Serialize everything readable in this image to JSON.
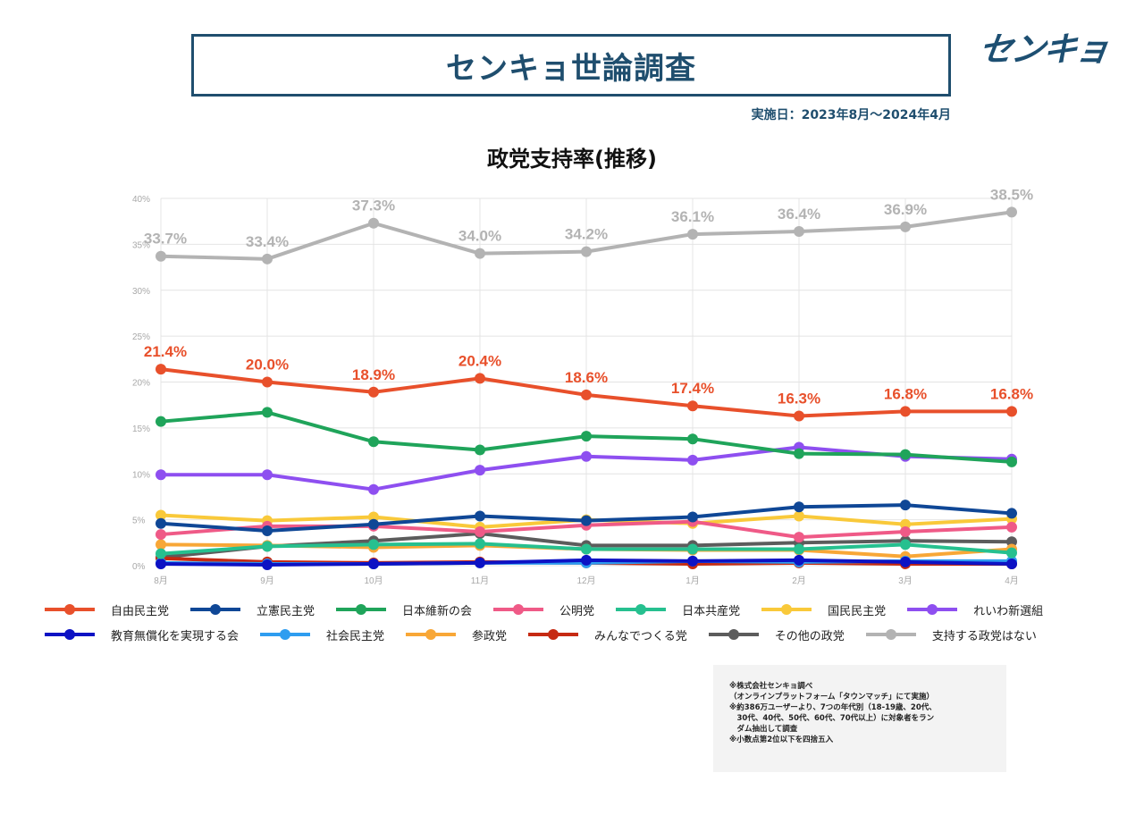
{
  "header": {
    "title": "センキョ世論調査",
    "logo": "センキョ",
    "date_range": "実施日：2023年8月〜2024年4月"
  },
  "chart_data": {
    "type": "line",
    "title": "政党支持率(推移)",
    "xlabel": "",
    "ylabel": "",
    "categories": [
      "8月",
      "9月",
      "10月",
      "11月",
      "12月",
      "1月",
      "2月",
      "3月",
      "4月"
    ],
    "ylim": [
      0,
      40
    ],
    "yticks": [
      "0%",
      "5%",
      "10%",
      "15%",
      "20%",
      "25%",
      "30%",
      "35%",
      "40%"
    ],
    "grid": true,
    "legend_position": "bottom",
    "series": [
      {
        "name": "自由民主党",
        "color": "#e8502b",
        "values": [
          21.4,
          20.0,
          18.9,
          20.4,
          18.6,
          17.4,
          16.3,
          16.8,
          16.8
        ],
        "labels": [
          "21.4%",
          "20.0%",
          "18.9%",
          "20.4%",
          "18.6%",
          "17.4%",
          "16.3%",
          "16.8%",
          "16.8%"
        ]
      },
      {
        "name": "立憲民主党",
        "color": "#0f4796",
        "values": [
          4.6,
          3.8,
          4.5,
          5.4,
          4.9,
          5.3,
          6.4,
          6.6,
          5.7
        ]
      },
      {
        "name": "日本維新の会",
        "color": "#1fa45a",
        "values": [
          15.7,
          16.7,
          13.5,
          12.6,
          14.1,
          13.8,
          12.2,
          12.1,
          11.3
        ]
      },
      {
        "name": "公明党",
        "color": "#ef5a87",
        "values": [
          3.4,
          4.3,
          4.3,
          3.7,
          4.4,
          4.8,
          3.1,
          3.7,
          4.2
        ]
      },
      {
        "name": "日本共産党",
        "color": "#26c08f",
        "values": [
          1.3,
          2.1,
          2.3,
          2.4,
          1.8,
          1.8,
          1.8,
          2.3,
          1.4
        ]
      },
      {
        "name": "国民民主党",
        "color": "#f9c93a",
        "values": [
          5.5,
          4.9,
          5.3,
          4.2,
          5.0,
          4.6,
          5.4,
          4.5,
          5.1
        ]
      },
      {
        "name": "れいわ新選組",
        "color": "#8e4ff0",
        "values": [
          9.9,
          9.9,
          8.3,
          10.4,
          11.9,
          11.5,
          12.9,
          11.9,
          11.6
        ]
      },
      {
        "name": "教育無償化を実現する会",
        "color": "#0d12c4",
        "values": [
          0.2,
          0.1,
          0.2,
          0.3,
          0.6,
          0.5,
          0.6,
          0.4,
          0.2
        ]
      },
      {
        "name": "社会民主党",
        "color": "#2e9df0",
        "values": [
          0.3,
          0.2,
          0.2,
          0.3,
          0.3,
          0.5,
          0.4,
          0.5,
          0.5
        ]
      },
      {
        "name": "参政党",
        "color": "#f8a737",
        "values": [
          2.3,
          2.2,
          2.0,
          2.2,
          1.8,
          1.7,
          1.7,
          1.0,
          1.8
        ]
      },
      {
        "name": "みんなでつくる党",
        "color": "#c62a12",
        "values": [
          0.8,
          0.4,
          0.3,
          0.4,
          0.3,
          0.2,
          0.3,
          0.2,
          0.2
        ]
      },
      {
        "name": "その他の政党",
        "color": "#5c5c5c",
        "values": [
          0.9,
          2.1,
          2.7,
          3.5,
          2.2,
          2.2,
          2.5,
          2.7,
          2.6
        ]
      },
      {
        "name": "支持する政党はない",
        "color": "#b3b3b3",
        "values": [
          33.7,
          33.4,
          37.3,
          34.0,
          34.2,
          36.1,
          36.4,
          36.9,
          38.5
        ],
        "labels": [
          "33.7%",
          "33.4%",
          "37.3%",
          "34.0%",
          "34.2%",
          "36.1%",
          "36.4%",
          "36.9%",
          "38.5%"
        ]
      }
    ]
  },
  "legend": {
    "rows": [
      [
        "自由民主党",
        "立憲民主党",
        "日本維新の会",
        "公明党",
        "日本共産党",
        "国民民主党",
        "れいわ新選組"
      ],
      [
        "教育無償化を実現する会",
        "社会民主党",
        "参政党",
        "みんなでつくる党",
        "その他の政党",
        "支持する政党はない"
      ]
    ]
  },
  "notes": [
    "※株式会社センキョ調べ",
    "（オンラインプラットフォーム「タウンマッチ」にて実施）",
    "※約386万ユーザーより、7つの年代別（18-19歳、20代、",
    "　30代、40代、50代、60代、70代以上）に対象者をラン",
    "　ダム抽出して調査",
    "※小数点第2位以下を四捨五入"
  ]
}
